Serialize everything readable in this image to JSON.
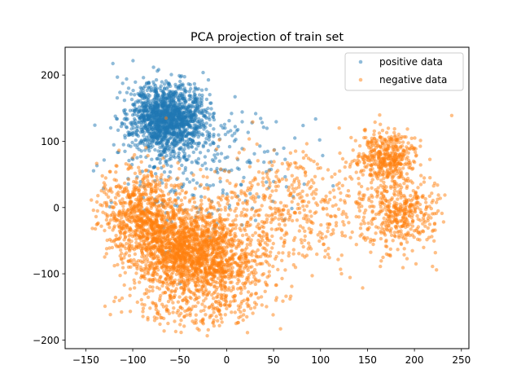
{
  "chart_data": {
    "type": "scatter",
    "title": "PCA projection of train set",
    "xlabel": "",
    "ylabel": "",
    "xlim": [
      -172,
      258
    ],
    "ylim": [
      -213,
      242
    ],
    "xticks": [
      -150,
      -100,
      -50,
      0,
      50,
      100,
      150,
      200,
      250
    ],
    "xtick_labels": [
      "−150",
      "−100",
      "−50",
      "0",
      "50",
      "100",
      "150",
      "200",
      "250"
    ],
    "yticks": [
      -200,
      -100,
      0,
      100,
      200
    ],
    "ytick_labels": [
      "−200",
      "−100",
      "0",
      "100",
      "200"
    ],
    "grid": false,
    "legend_position": "top-right",
    "series": [
      {
        "name": "positive data",
        "color": "#1f77b4",
        "alpha": 0.5,
        "approx_clusters": [
          {
            "center": [
              -62,
              135
            ],
            "spread": [
              20,
              26
            ],
            "weight": 0.85
          },
          {
            "center": [
              -35,
              65
            ],
            "spread": [
              55,
              50
            ],
            "weight": 0.15
          }
        ]
      },
      {
        "name": "negative data",
        "color": "#ff7f0e",
        "alpha": 0.5,
        "approx_clusters": [
          {
            "center": [
              -45,
              -65
            ],
            "spread": [
              28,
              32
            ],
            "weight": 0.32
          },
          {
            "center": [
              -90,
              -10
            ],
            "spread": [
              22,
              35
            ],
            "weight": 0.18
          },
          {
            "center": [
              -5,
              -85
            ],
            "spread": [
              30,
              30
            ],
            "weight": 0.12
          },
          {
            "center": [
              60,
              0
            ],
            "spread": [
              55,
              45
            ],
            "weight": 0.13
          },
          {
            "center": [
              170,
              75
            ],
            "spread": [
              15,
              20
            ],
            "weight": 0.1
          },
          {
            "center": [
              185,
              -10
            ],
            "spread": [
              20,
              28
            ],
            "weight": 0.1
          },
          {
            "center": [
              -30,
              -150
            ],
            "spread": [
              40,
              20
            ],
            "weight": 0.05
          }
        ]
      }
    ]
  }
}
